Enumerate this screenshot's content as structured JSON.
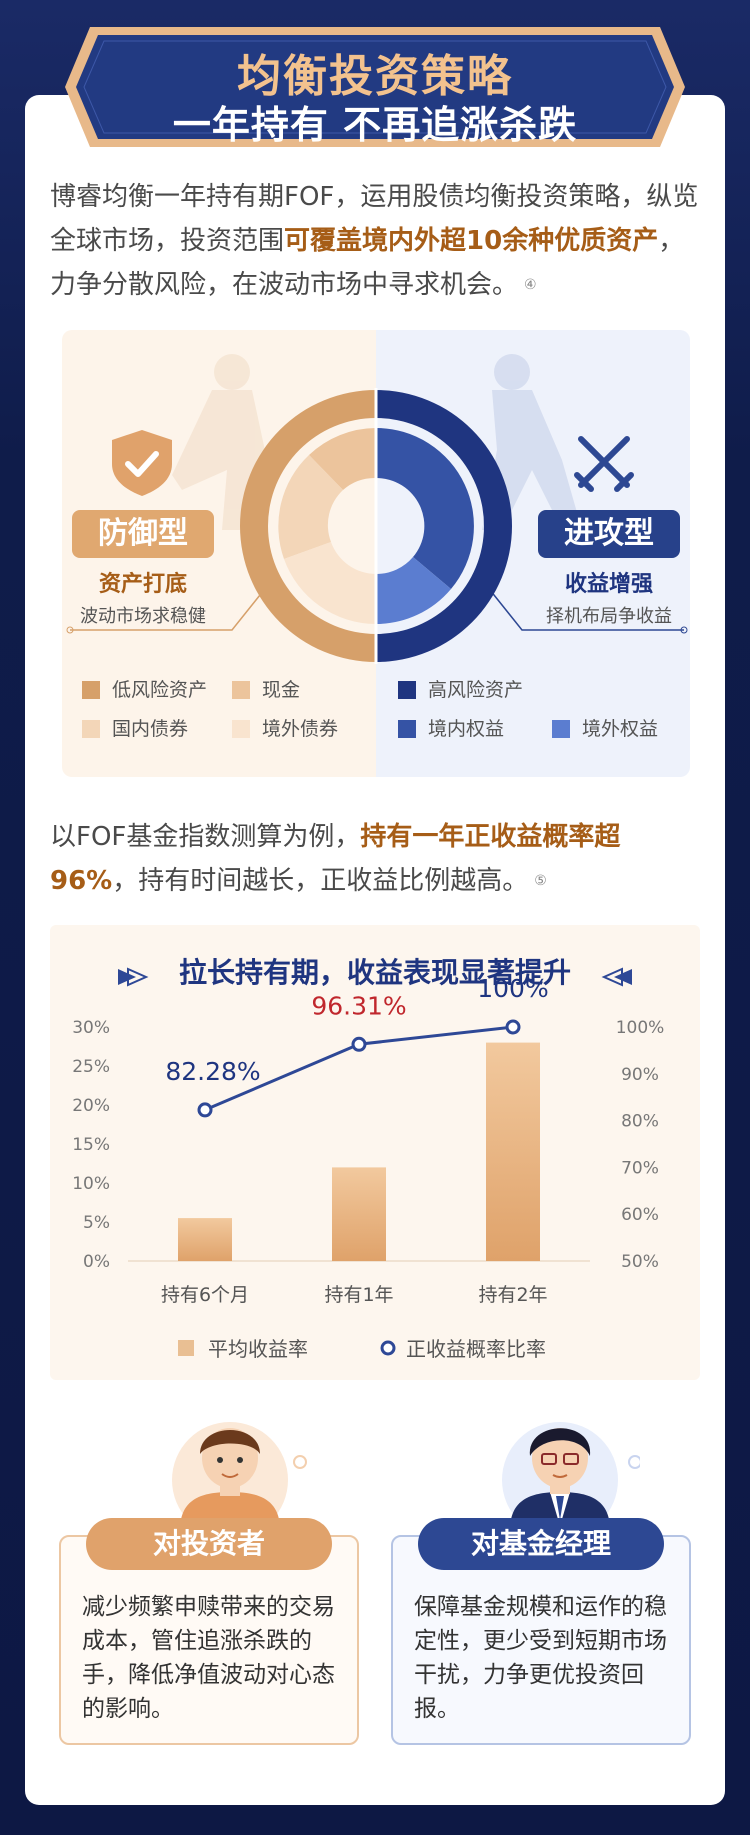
{
  "banner": {
    "title": "均衡投资策略",
    "subtitle": "一年持有 不再追涨杀跌"
  },
  "intro": {
    "part1": "博睿均衡一年持有期FOF，运用股债均衡投资策略，纵览全球市场，投资范围",
    "highlight": "可覆盖境内外超10余种优质资产",
    "part2": "，力争分散风险，在波动市场中寻求机会。",
    "footnote": "④"
  },
  "asset": {
    "defense_tag": "防御型",
    "defense_sub": "资产打底",
    "defense_desc": "波动市场求稳健",
    "attack_tag": "进攻型",
    "attack_sub": "收益增强",
    "attack_desc": "择机布局争收益",
    "legend": [
      {
        "label": "低风险资产",
        "color": "#d6a06a"
      },
      {
        "label": "现金",
        "color": "#ecc49c"
      },
      {
        "label": "高风险资产",
        "color": "#1f3580"
      },
      {
        "label": "国内债券",
        "color": "#f3d6b8"
      },
      {
        "label": "境外债券",
        "color": "#f9e4cf"
      },
      {
        "label": "境内权益",
        "color": "#3553a5"
      },
      {
        "label": "境外权益",
        "color": "#5b7dd0"
      }
    ]
  },
  "para2": {
    "part1": "以FOF基金指数测算为例，",
    "highlight": "持有一年正收益概率超96%",
    "part2": "，持有时间越长，正收益比例越高。",
    "footnote": "⑤"
  },
  "chart_data": {
    "type": "bar",
    "title": "拉长持有期，收益表现显著提升",
    "categories": [
      "持有6个月",
      "持有1年",
      "持有2年"
    ],
    "series": [
      {
        "name": "平均收益率",
        "type": "bar",
        "values": [
          5.5,
          12,
          28
        ],
        "axis": "left"
      },
      {
        "name": "正收益概率比率",
        "type": "line",
        "values": [
          82.28,
          96.31,
          100
        ],
        "axis": "right"
      }
    ],
    "data_labels": [
      "82.28%",
      "96.31%",
      "100%"
    ],
    "y_left_ticks": [
      "0%",
      "5%",
      "10%",
      "15%",
      "20%",
      "25%",
      "30%"
    ],
    "y_right_ticks": [
      "50%",
      "60%",
      "70%",
      "80%",
      "90%",
      "100%"
    ],
    "ylim_left": [
      0,
      30
    ],
    "ylim_right": [
      50,
      100
    ],
    "legend_position": "bottom",
    "colors": {
      "bar": "#e6b486",
      "line": "#2e4896",
      "highlight_label": "#c0272d"
    }
  },
  "roles": {
    "investor_tag": "对投资者",
    "investor_text": "减少频繁申赎带来的交易成本，管住追涨杀跌的手，降低净值波动对心态的影响。",
    "manager_tag": "对基金经理",
    "manager_text": "保障基金规模和运作的稳定性，更少受到短期市场干扰，力争更优投资回报。"
  }
}
